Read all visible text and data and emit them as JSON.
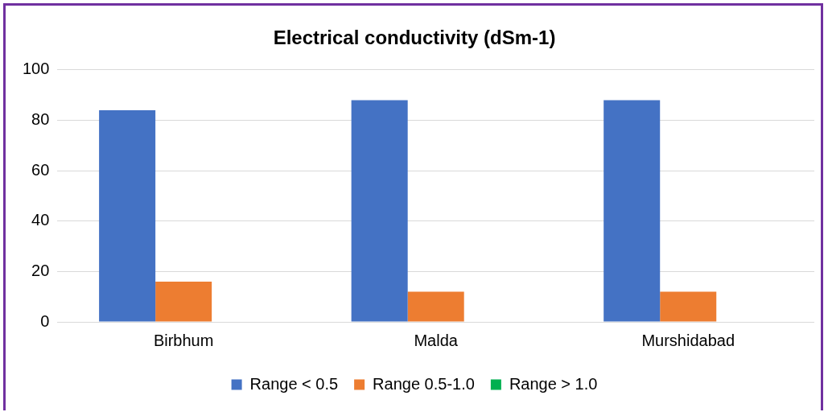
{
  "chart_data": {
    "type": "bar",
    "title": "Electrical conductivity (dSm-1)",
    "categories": [
      "Birbhum",
      "Malda",
      "Murshidabad"
    ],
    "series": [
      {
        "name": "Range < 0.5",
        "color": "#4472c4",
        "values": [
          84,
          88,
          88
        ]
      },
      {
        "name": "Range 0.5-1.0",
        "color": "#ed7d31",
        "values": [
          16,
          12,
          12
        ]
      },
      {
        "name": "Range > 1.0",
        "color": "#00b050",
        "values": [
          0,
          0,
          0
        ]
      }
    ],
    "ylim": [
      0,
      100
    ],
    "yticks": [
      0,
      20,
      40,
      60,
      80,
      100
    ],
    "grid": "y",
    "legend": "bottom"
  }
}
